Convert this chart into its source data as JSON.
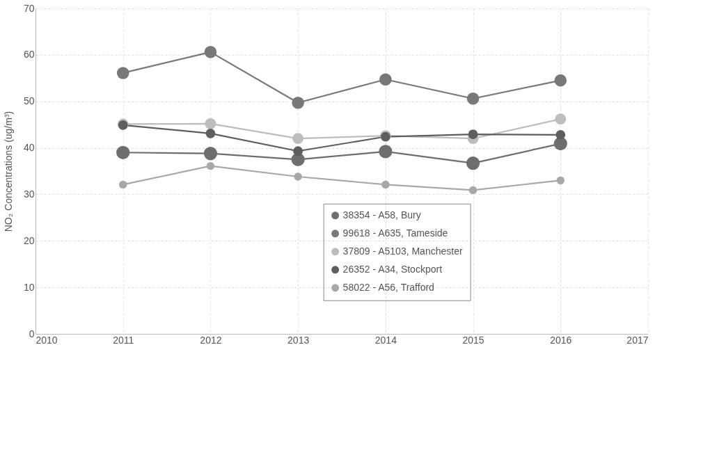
{
  "chart_data": {
    "type": "line",
    "ylabel": "NO₂ Concentrations (ug/m³)",
    "x": [
      2011,
      2012,
      2013,
      2014,
      2015,
      2016
    ],
    "series": [
      {
        "name": "38354 - A58, Bury",
        "color": "#6e6e6e",
        "values": [
          39.0,
          38.8,
          37.5,
          39.2,
          36.7,
          40.9
        ]
      },
      {
        "name": "99618 - A635, Tameside",
        "color": "#787878",
        "values": [
          56.1,
          60.6,
          49.7,
          54.7,
          50.6,
          54.5
        ]
      },
      {
        "name": "37809 - A5103, Manchester",
        "color": "#bdbdbd",
        "values": [
          45.1,
          45.2,
          42.0,
          42.6,
          42.0,
          46.2
        ]
      },
      {
        "name": "26352 - A34, Stockport",
        "color": "#5e5e5e",
        "values": [
          44.9,
          43.1,
          39.3,
          42.4,
          42.9,
          42.8
        ]
      },
      {
        "name": "58022 - A56, Trafford",
        "color": "#a8a8a8",
        "values": [
          32.1,
          36.1,
          33.8,
          32.1,
          30.9,
          33.0
        ]
      }
    ],
    "xlim": [
      2010,
      2017
    ],
    "xticks": [
      2010,
      2011,
      2012,
      2013,
      2014,
      2015,
      2016,
      2017
    ],
    "ylim": [
      0,
      70
    ],
    "yticks": [
      0,
      10,
      20,
      30,
      40,
      50,
      60,
      70
    ],
    "grid": true,
    "legend": "bottom right",
    "marker": "circle",
    "line_style": "solid"
  }
}
